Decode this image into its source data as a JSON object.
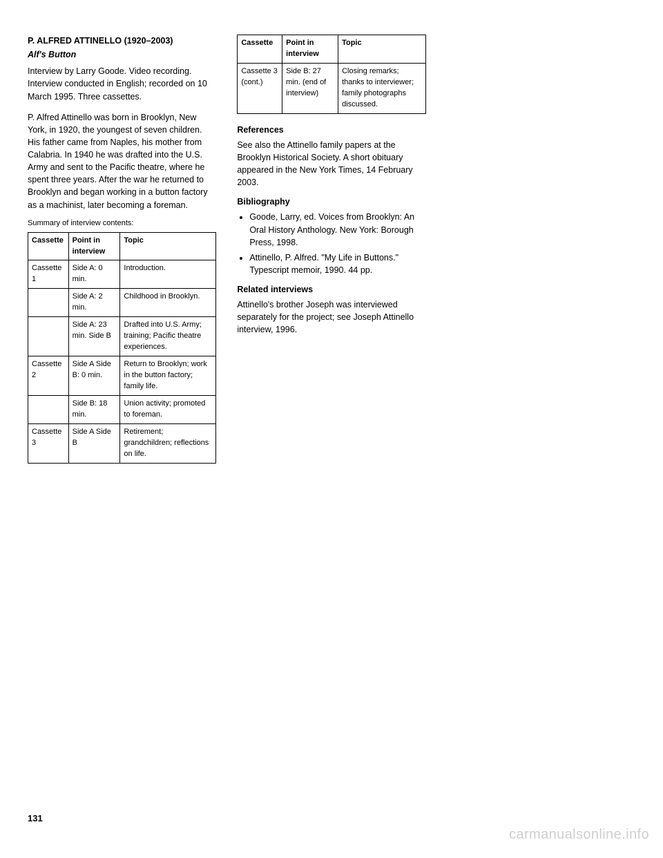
{
  "col1": {
    "heading": "P. ALFRED ATTINELLO (1920–2003)",
    "subhead": "Alf's Button",
    "p1": "Interview by Larry Goode. Video recording. Interview conducted in English; recorded on 10 March 1995. Three cassettes.",
    "p2": "P. Alfred Attinello was born in Brooklyn, New York, in 1920, the youngest of seven children. His father came from Naples, his mother from Calabria. In 1940 he was drafted into the U.S. Army and sent to the Pacific theatre, where he spent three years. After the war he returned to Brooklyn and began working in a button factory as a machinist, later becoming a foreman.",
    "tableLabel": "Summary of interview contents:",
    "table": {
      "headers": [
        "Cassette",
        "Point in interview",
        "Topic"
      ],
      "rows": [
        [
          {
            "c": "Cassette 1",
            "d": "Side A: 0 min.",
            "t": "Introduction."
          },
          {
            "c": "",
            "d": "Side A: 2 min.",
            "t": "Childhood in Brooklyn."
          },
          {
            "c": "",
            "d": "Side A: 23 min.\nSide B",
            "t": "Drafted into U.S. Army; training; Pacific theatre experiences."
          }
        ],
        [
          {
            "c": "Cassette 2",
            "d": "Side A\nSide B: 0 min.",
            "t": "Return to Brooklyn; work in the button factory; family life."
          }
        ],
        [
          {
            "c": "",
            "d": "Side B: 18 min.",
            "t": "Union activity; promoted to foreman."
          }
        ],
        [
          {
            "c": "Cassette 3",
            "d": "Side A\nSide B",
            "t": "Retirement; grandchildren; reflections on life."
          }
        ]
      ]
    }
  },
  "col2": {
    "tableLabel": "",
    "table": {
      "headers": [
        "Cassette",
        "Point in interview",
        "Topic"
      ],
      "rows": [
        [
          {
            "c": "Cassette 3 (cont.)",
            "d": "Side B: 27 min.\n(end of interview)",
            "t": "Closing remarks; thanks to interviewer; family photographs discussed."
          }
        ]
      ]
    },
    "heading2": "References",
    "p3": "See also the Attinello family papers at the Brooklyn Historical Society. A short obituary appeared in the New York Times, 14 February 2003.",
    "heading3": "Bibliography",
    "bullets": [
      "Goode, Larry, ed. Voices from Brooklyn: An Oral History Anthology. New York: Borough Press, 1998.",
      "Attinello, P. Alfred. \"My Life in Buttons.\" Typescript memoir, 1990. 44 pp."
    ],
    "heading4": "Related interviews",
    "p4": "Attinello's brother Joseph was interviewed separately for the project; see Joseph Attinello interview, 1996."
  },
  "col3": {
    "heading": "",
    "p1": ""
  },
  "pageNumber": "131",
  "watermark": "carmanualsonline.info"
}
